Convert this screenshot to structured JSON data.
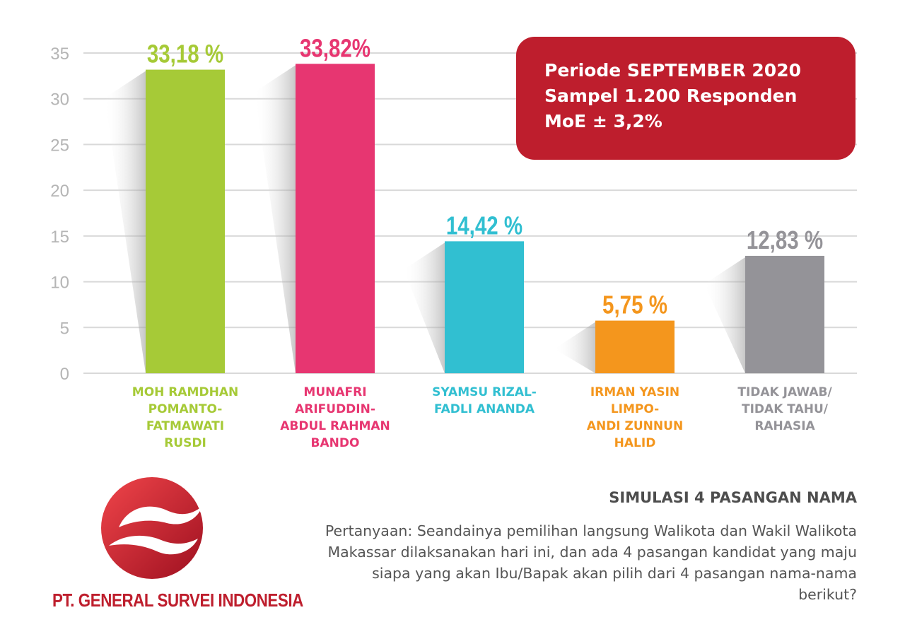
{
  "chart_data": {
    "type": "bar",
    "ylim": [
      0,
      35
    ],
    "yticks": [
      "35",
      "30",
      "25",
      "20",
      "15",
      "10",
      "5",
      "0"
    ],
    "grid": true,
    "categories": [
      "MOH RAMDHAN POMANTO-FATMAWATI RUSDI",
      "MUNAFRI ARIFUDDIN-ABDUL RAHMAN BANDO",
      "SYAMSU RIZAL-FADLI ANANDA",
      "IRMAN YASIN LIMPO-ANDI ZUNNUN HALID",
      "TIDAK JAWAB/ TIDAK TAHU/ RAHASIA"
    ],
    "values": [
      33.18,
      33.82,
      14.42,
      5.75,
      12.83
    ],
    "bars": [
      {
        "value": 33.18,
        "value_label": "33,18 %",
        "color": "#a6ca37",
        "label_lines": [
          "MOH RAMDHAN",
          "POMANTO-",
          "FATMAWATI",
          "RUSDI"
        ]
      },
      {
        "value": 33.82,
        "value_label": "33,82%",
        "color": "#e73671",
        "label_lines": [
          "MUNAFRI",
          "ARIFUDDIN-",
          "ABDUL RAHMAN",
          "BANDO"
        ]
      },
      {
        "value": 14.42,
        "value_label": "14,42 %",
        "color": "#31bfd1",
        "label_lines": [
          "SYAMSU RIZAL-",
          "FADLI ANANDA"
        ]
      },
      {
        "value": 5.75,
        "value_label": "5,75 %",
        "color": "#f4961d",
        "label_lines": [
          "IRMAN YASIN",
          "LIMPO-",
          "ANDI ZUNNUN",
          "HALID"
        ]
      },
      {
        "value": 12.83,
        "value_label": "12,83 %",
        "color": "#949398",
        "label_lines": [
          "TIDAK JAWAB/",
          "TIDAK TAHU/",
          "RAHASIA"
        ]
      }
    ]
  },
  "info_box": {
    "line1": "Periode SEPTEMBER 2020",
    "line2": "Sampel 1.200 Responden",
    "line3": "MoE ± 3,2%"
  },
  "footer": {
    "company": "PT. GENERAL SURVEI INDONESIA",
    "title": "SIMULASI 4 PASANGAN NAMA",
    "question": "Pertanyaan: Seandainya pemilihan langsung Walikota dan Wakil Walikota Makassar dilaksanakan hari ini, dan ada 4 pasangan kandidat yang maju siapa yang akan Ibu/Bapak akan pilih dari 4 pasangan nama-nama berikut?"
  },
  "colors": {
    "brand_red": "#be1e2d",
    "grid": "#d9d9d9",
    "tick_text": "#b5b5b5"
  }
}
